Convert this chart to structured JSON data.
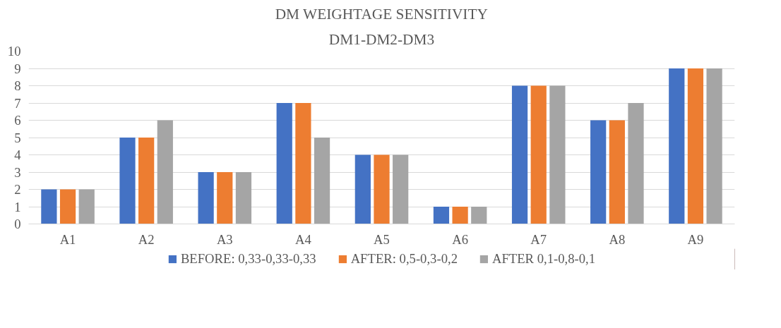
{
  "chart_data": {
    "type": "bar",
    "title": "DM WEIGHTAGE SENSITIVITY",
    "subtitle": "DM1-DM2-DM3",
    "categories": [
      "A1",
      "A2",
      "A3",
      "A4",
      "A5",
      "A6",
      "A7",
      "A8",
      "A9"
    ],
    "series": [
      {
        "name": "BEFORE: 0,33-0,33-0,33",
        "color": "#4472c4",
        "values": [
          2,
          5,
          3,
          7,
          4,
          1,
          8,
          6,
          9
        ]
      },
      {
        "name": "AFTER: 0,5-0,3-0,2",
        "color": "#ed7d31",
        "values": [
          2,
          5,
          3,
          7,
          4,
          1,
          8,
          6,
          9
        ]
      },
      {
        "name": "AFTER 0,1-0,8-0,1",
        "color": "#a5a5a5",
        "values": [
          2,
          6,
          3,
          5,
          4,
          1,
          8,
          7,
          9
        ]
      }
    ],
    "ylim": [
      0,
      10
    ],
    "yticks": [
      0,
      1,
      2,
      3,
      4,
      5,
      6,
      7,
      8,
      9,
      10
    ],
    "grid": "y",
    "legend": "bottom"
  }
}
